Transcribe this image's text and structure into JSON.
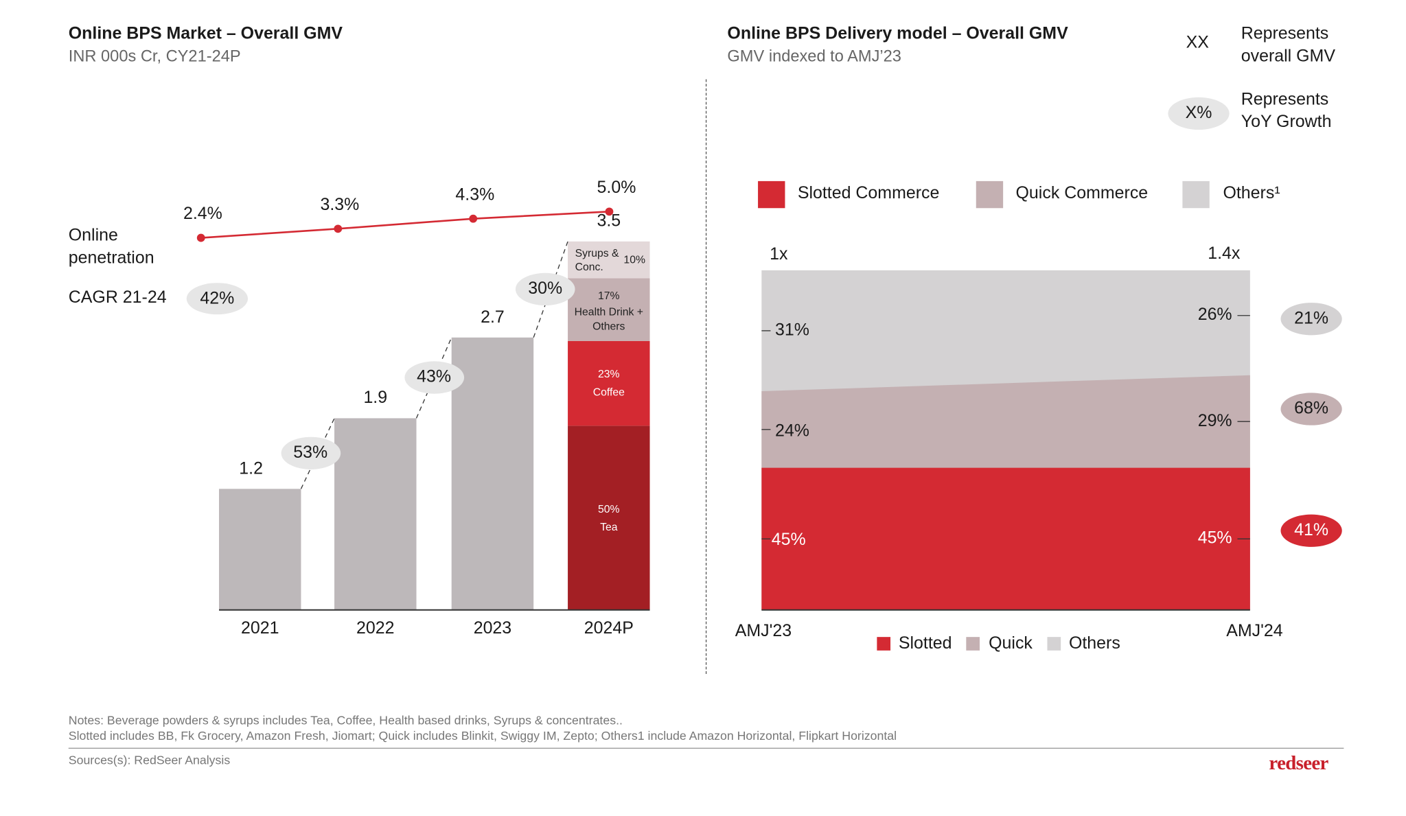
{
  "left": {
    "title": "Online BPS Market – Overall GMV",
    "subtitle": "INR 000s Cr, CY21-24P",
    "penetration_label_1": "Online",
    "penetration_label_2": "penetration",
    "cagr_label": "CAGR 21-24",
    "cagr_value": "42%"
  },
  "right": {
    "title": "Online BPS Delivery model – Overall GMV",
    "subtitle": "GMV indexed to AMJ’23",
    "key_xx": "XX",
    "key_xx_text_1": "Represents",
    "key_xx_text_2": "overall GMV",
    "key_pct": "X%",
    "key_pct_text_1": "Represents",
    "key_pct_text_2": "YoY Growth"
  },
  "chart_data": [
    {
      "type": "bar",
      "categories": [
        "2021",
        "2022",
        "2023",
        "2024P"
      ],
      "values": [
        1.2,
        1.9,
        2.7,
        3.5
      ],
      "value_labels": [
        "1.2",
        "1.9",
        "2.7",
        "3.5"
      ],
      "growth_labels": [
        "53%",
        "43%",
        "30%"
      ],
      "penetration": {
        "values": [
          2.4,
          3.3,
          4.3,
          5.0
        ],
        "labels": [
          "2.4%",
          "3.3%",
          "4.3%",
          "5.0%"
        ],
        "color": "#d42a33"
      },
      "breakdown_2024P": [
        {
          "name": "Tea",
          "share": 50,
          "label": "50%",
          "color": "#a31f24"
        },
        {
          "name": "Coffee",
          "share": 23,
          "label": "23%",
          "color": "#d42a33"
        },
        {
          "name": "Health Drink + Others",
          "share": 17,
          "label": "17%",
          "color": "#c4b0b2"
        },
        {
          "name": "Syrups & Conc.",
          "share": 10,
          "label": "10%",
          "color": "#e3d8d9"
        }
      ],
      "bar_color": "#bdb8ba"
    },
    {
      "type": "area",
      "categories": [
        "AMJ'23",
        "AMJ'24"
      ],
      "totals": [
        "1x",
        "1.4x"
      ],
      "total_values": [
        1,
        1.4
      ],
      "series": [
        {
          "name": "Slotted Commerce",
          "short": "Slotted",
          "values": [
            45,
            45
          ],
          "labels": [
            "45%",
            "45%"
          ],
          "yoy": "41%",
          "color": "#d42a33"
        },
        {
          "name": "Quick Commerce",
          "short": "Quick",
          "values": [
            24,
            29
          ],
          "labels": [
            "24%",
            "29%"
          ],
          "yoy": "68%",
          "color": "#c4b0b2"
        },
        {
          "name": "Others¹",
          "short": "Others",
          "values": [
            31,
            26
          ],
          "labels": [
            "31%",
            "26%"
          ],
          "yoy": "21%",
          "color": "#d4d2d3"
        }
      ]
    }
  ],
  "footer": {
    "note_1": "Notes: Beverage powders & syrups includes Tea, Coffee, Health based drinks, Syrups & concentrates..",
    "note_2": "Slotted includes BB, Fk Grocery, Amazon Fresh, Jiomart; Quick includes Blinkit, Swiggy IM, Zepto; Others1 include Amazon Horizontal, Flipkart Horizontal",
    "sources": "Sources(s): RedSeer Analysis",
    "logo": "redseer"
  }
}
